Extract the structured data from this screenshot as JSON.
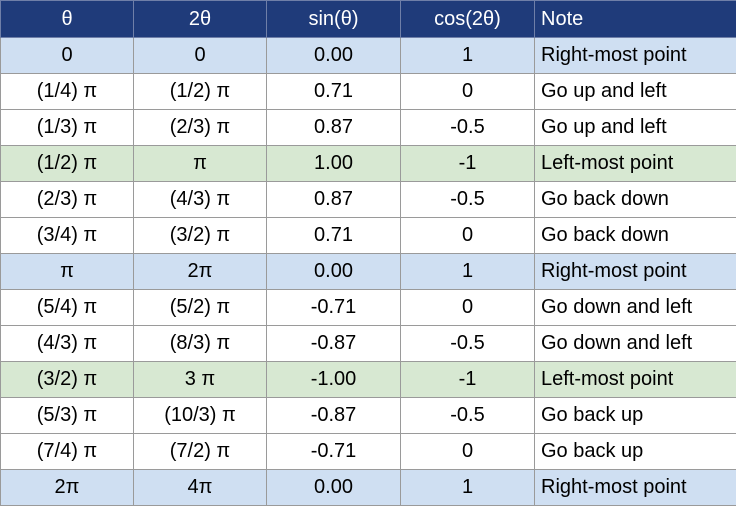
{
  "headers": [
    "θ",
    "2θ",
    "sin(θ)",
    "cos(2θ)",
    "Note"
  ],
  "colors": {
    "header_bg": "#1f3b7a",
    "header_text": "#ffffff",
    "blue_row": "#cfdff2",
    "green_row": "#d7e8d2",
    "white_row": "#ffffff"
  },
  "rows": [
    {
      "style": "blue",
      "cells": [
        "0",
        "0",
        "0.00",
        "1",
        "Right-most point"
      ]
    },
    {
      "style": "white",
      "cells": [
        "(1/4) π",
        "(1/2) π",
        "0.71",
        "0",
        "Go up and left"
      ]
    },
    {
      "style": "white",
      "cells": [
        "(1/3) π",
        "(2/3) π",
        "0.87",
        "-0.5",
        "Go up and left"
      ]
    },
    {
      "style": "green",
      "cells": [
        "(1/2) π",
        "π",
        "1.00",
        "-1",
        "Left-most point"
      ]
    },
    {
      "style": "white",
      "cells": [
        "(2/3) π",
        "(4/3) π",
        "0.87",
        "-0.5",
        "Go back down"
      ]
    },
    {
      "style": "white",
      "cells": [
        "(3/4) π",
        "(3/2) π",
        "0.71",
        "0",
        "Go back down"
      ]
    },
    {
      "style": "blue",
      "cells": [
        "π",
        "2π",
        "0.00",
        "1",
        "Right-most point"
      ]
    },
    {
      "style": "white",
      "cells": [
        "(5/4) π",
        "(5/2) π",
        "-0.71",
        "0",
        "Go down and left"
      ]
    },
    {
      "style": "white",
      "cells": [
        "(4/3) π",
        "(8/3) π",
        "-0.87",
        "-0.5",
        "Go down and left"
      ]
    },
    {
      "style": "green",
      "cells": [
        "(3/2) π",
        "3 π",
        "-1.00",
        "-1",
        "Left-most point"
      ]
    },
    {
      "style": "white",
      "cells": [
        "(5/3) π",
        "(10/3) π",
        "-0.87",
        "-0.5",
        "Go back up"
      ]
    },
    {
      "style": "white",
      "cells": [
        "(7/4) π",
        "(7/2) π",
        "-0.71",
        "0",
        "Go back up"
      ]
    },
    {
      "style": "blue",
      "cells": [
        "2π",
        "4π",
        "0.00",
        "1",
        "Right-most point"
      ]
    }
  ]
}
